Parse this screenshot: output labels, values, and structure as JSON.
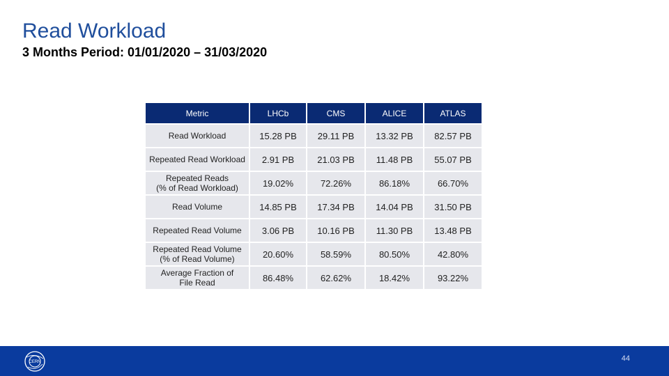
{
  "slide": {
    "title": "Read Workload",
    "subtitle": "3 Months Period: 01/01/2020 – 31/03/2020",
    "page_number": "44",
    "logo_text": "CERN"
  },
  "table": {
    "headers": [
      "Metric",
      "LHCb",
      "CMS",
      "ALICE",
      "ATLAS"
    ],
    "rows": [
      {
        "metric": "Read Workload",
        "values": [
          "15.28 PB",
          "29.11 PB",
          "13.32 PB",
          "82.57 PB"
        ]
      },
      {
        "metric": "Repeated Read Workload",
        "values": [
          "2.91 PB",
          "21.03 PB",
          "11.48 PB",
          "55.07 PB"
        ]
      },
      {
        "metric": "Repeated Reads\n(% of Read Workload)",
        "values": [
          "19.02%",
          "72.26%",
          "86.18%",
          "66.70%"
        ]
      },
      {
        "metric": "Read Volume",
        "values": [
          "14.85 PB",
          "17.34 PB",
          "14.04 PB",
          "31.50 PB"
        ]
      },
      {
        "metric": "Repeated Read Volume",
        "values": [
          "3.06 PB",
          "10.16 PB",
          "11.30 PB",
          "13.48 PB"
        ]
      },
      {
        "metric": "Repeated Read Volume\n(% of Read Volume)",
        "values": [
          "20.60%",
          "58.59%",
          "80.50%",
          "42.80%"
        ]
      },
      {
        "metric": "Average Fraction of\nFile Read",
        "values": [
          "86.48%",
          "62.62%",
          "18.42%",
          "93.22%"
        ]
      }
    ]
  },
  "colors": {
    "title": "#1f4e9c",
    "header_bg": "#0a2a73",
    "cell_bg": "#e6e7ec",
    "footer_bg": "#0a3b9e"
  }
}
